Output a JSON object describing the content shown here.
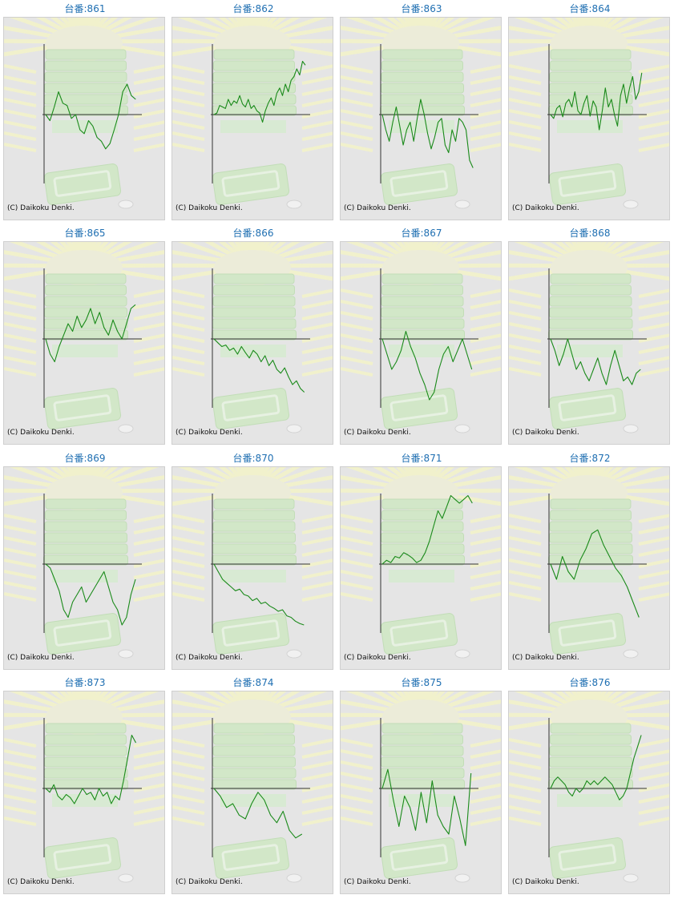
{
  "colors": {
    "line": "#1a8a1a",
    "axis": "#333333",
    "card_bg": "#e5e5e5",
    "title": "#1f6fb2",
    "watermark_green": "#cfe8c4",
    "watermark_rays": "#f4f4c8"
  },
  "copyright": "(C) Daikoku Denki.",
  "chart_data": [
    {
      "type": "line",
      "title": "台番:861",
      "values": [
        0,
        -8,
        10,
        30,
        15,
        12,
        -5,
        0,
        -20,
        -25,
        -8,
        -15,
        -30,
        -35,
        -45,
        -38,
        -20,
        0,
        30,
        40,
        25,
        20
      ]
    },
    {
      "type": "line",
      "title": "台番:862",
      "values": [
        0,
        2,
        12,
        10,
        8,
        20,
        12,
        18,
        15,
        25,
        14,
        10,
        20,
        8,
        12,
        5,
        2,
        -10,
        5,
        15,
        22,
        12,
        28,
        35,
        25,
        40,
        30,
        45,
        50,
        60,
        52,
        70,
        65
      ]
    },
    {
      "type": "line",
      "title": "台番:863",
      "values": [
        0,
        -20,
        -35,
        -10,
        10,
        -15,
        -40,
        -20,
        -10,
        -35,
        -5,
        20,
        0,
        -25,
        -45,
        -30,
        -10,
        -5,
        -40,
        -50,
        -20,
        -35,
        -5,
        -10,
        -20,
        -60,
        -70
      ]
    },
    {
      "type": "line",
      "title": "台番:864",
      "values": [
        0,
        -5,
        8,
        12,
        -3,
        15,
        20,
        10,
        30,
        5,
        0,
        15,
        25,
        -2,
        18,
        10,
        -20,
        5,
        35,
        10,
        20,
        0,
        -15,
        25,
        40,
        15,
        35,
        50,
        20,
        30,
        55
      ]
    },
    {
      "type": "line",
      "title": "台番:865",
      "values": [
        0,
        -20,
        -30,
        -10,
        5,
        20,
        10,
        30,
        15,
        25,
        40,
        20,
        35,
        15,
        5,
        25,
        10,
        0,
        20,
        40,
        45
      ]
    },
    {
      "type": "line",
      "title": "台番:866",
      "values": [
        0,
        -5,
        -10,
        -8,
        -15,
        -12,
        -20,
        -10,
        -18,
        -25,
        -15,
        -20,
        -30,
        -22,
        -35,
        -28,
        -40,
        -45,
        -38,
        -50,
        -60,
        -55,
        -65,
        -70
      ]
    },
    {
      "type": "line",
      "title": "台番:867",
      "values": [
        0,
        -20,
        -40,
        -30,
        -15,
        10,
        -10,
        -25,
        -45,
        -60,
        -80,
        -70,
        -40,
        -20,
        -10,
        -30,
        -15,
        0,
        -20,
        -40
      ]
    },
    {
      "type": "line",
      "title": "台番:868",
      "values": [
        0,
        -15,
        -35,
        -20,
        0,
        -20,
        -40,
        -30,
        -45,
        -55,
        -40,
        -25,
        -45,
        -60,
        -35,
        -15,
        -35,
        -55,
        -50,
        -60,
        -45,
        -40
      ]
    },
    {
      "type": "line",
      "title": "台番:869",
      "values": [
        0,
        -5,
        -20,
        -35,
        -60,
        -70,
        -50,
        -40,
        -30,
        -50,
        -40,
        -30,
        -20,
        -10,
        -30,
        -50,
        -60,
        -80,
        -70,
        -40,
        -20
      ]
    },
    {
      "type": "line",
      "title": "台番:870",
      "values": [
        0,
        -10,
        -20,
        -25,
        -30,
        -35,
        -33,
        -40,
        -42,
        -48,
        -45,
        -52,
        -50,
        -55,
        -58,
        -62,
        -60,
        -68,
        -70,
        -75,
        -78,
        -80
      ]
    },
    {
      "type": "line",
      "title": "台番:871",
      "values": [
        0,
        5,
        2,
        10,
        8,
        15,
        12,
        8,
        2,
        5,
        15,
        30,
        50,
        70,
        60,
        75,
        90,
        85,
        80,
        85,
        90,
        80
      ]
    },
    {
      "type": "line",
      "title": "台番:872",
      "values": [
        0,
        -20,
        10,
        -10,
        -20,
        5,
        20,
        40,
        45,
        25,
        10,
        -5,
        -15,
        -30,
        -50,
        -70
      ]
    },
    {
      "type": "line",
      "title": "台番:873",
      "values": [
        0,
        -5,
        5,
        -10,
        -15,
        -8,
        -12,
        -20,
        -10,
        0,
        -8,
        -5,
        -15,
        0,
        -10,
        -5,
        -20,
        -10,
        -15,
        10,
        40,
        70,
        60
      ]
    },
    {
      "type": "line",
      "title": "台番:874",
      "values": [
        0,
        -10,
        -25,
        -20,
        -35,
        -40,
        -20,
        -5,
        -15,
        -35,
        -45,
        -30,
        -55,
        -65,
        -60
      ]
    },
    {
      "type": "line",
      "title": "台番:875",
      "values": [
        0,
        25,
        -15,
        -50,
        -10,
        -25,
        -55,
        -5,
        -45,
        10,
        -35,
        -50,
        -60,
        -10,
        -40,
        -75,
        20
      ]
    },
    {
      "type": "line",
      "title": "台番:876",
      "values": [
        0,
        10,
        15,
        10,
        5,
        -5,
        -10,
        0,
        -5,
        0,
        10,
        5,
        10,
        5,
        10,
        15,
        10,
        5,
        -5,
        -15,
        -10,
        0,
        20,
        40,
        55,
        70
      ]
    }
  ]
}
